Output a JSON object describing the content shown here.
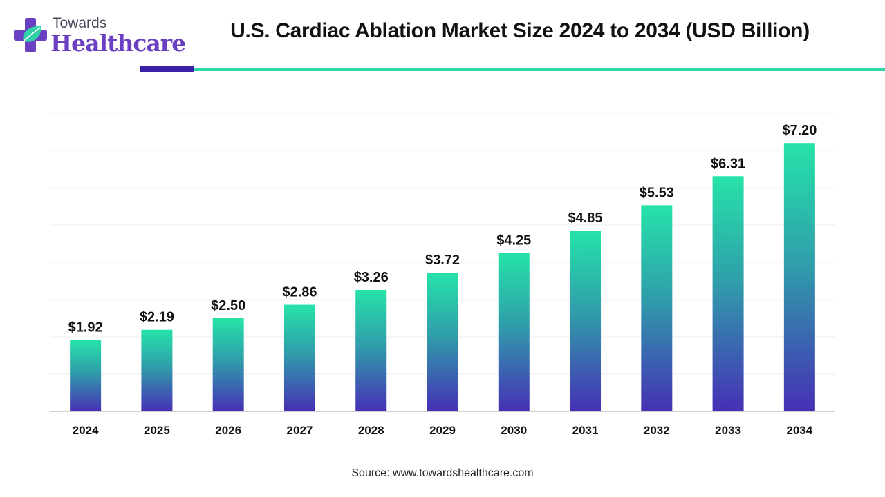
{
  "brand": {
    "name_top": "Towards",
    "name_bottom": "Healthcare",
    "colors": {
      "purple": "#6a3fc1",
      "teal": "#2fd8a6",
      "dark_bar": "#3a1fa8"
    }
  },
  "title": "U.S. Cardiac Ablation Market Size 2024 to 2034 (USD Billion)",
  "source": "Source: www.towardshealthcare.com",
  "chart_data": {
    "type": "bar",
    "title": "U.S. Cardiac Ablation Market Size 2024 to 2034 (USD Billion)",
    "xlabel": "",
    "ylabel": "",
    "categories": [
      "2024",
      "2025",
      "2026",
      "2027",
      "2028",
      "2029",
      "2030",
      "2031",
      "2032",
      "2033",
      "2034"
    ],
    "values": [
      1.92,
      2.19,
      2.5,
      2.86,
      3.26,
      3.72,
      4.25,
      4.85,
      5.53,
      6.31,
      7.2
    ],
    "value_labels": [
      "$1.92",
      "$2.19",
      "$2.50",
      "$2.86",
      "$3.26",
      "$3.72",
      "$4.25",
      "$4.85",
      "$5.53",
      "$6.31",
      "$7.20"
    ],
    "ylim": [
      0,
      8
    ],
    "grid": true,
    "legend": "none",
    "bar_gradient": {
      "top": "#26e3a9",
      "mid": "#2f9eaa",
      "bottom": "#4630b5"
    }
  }
}
